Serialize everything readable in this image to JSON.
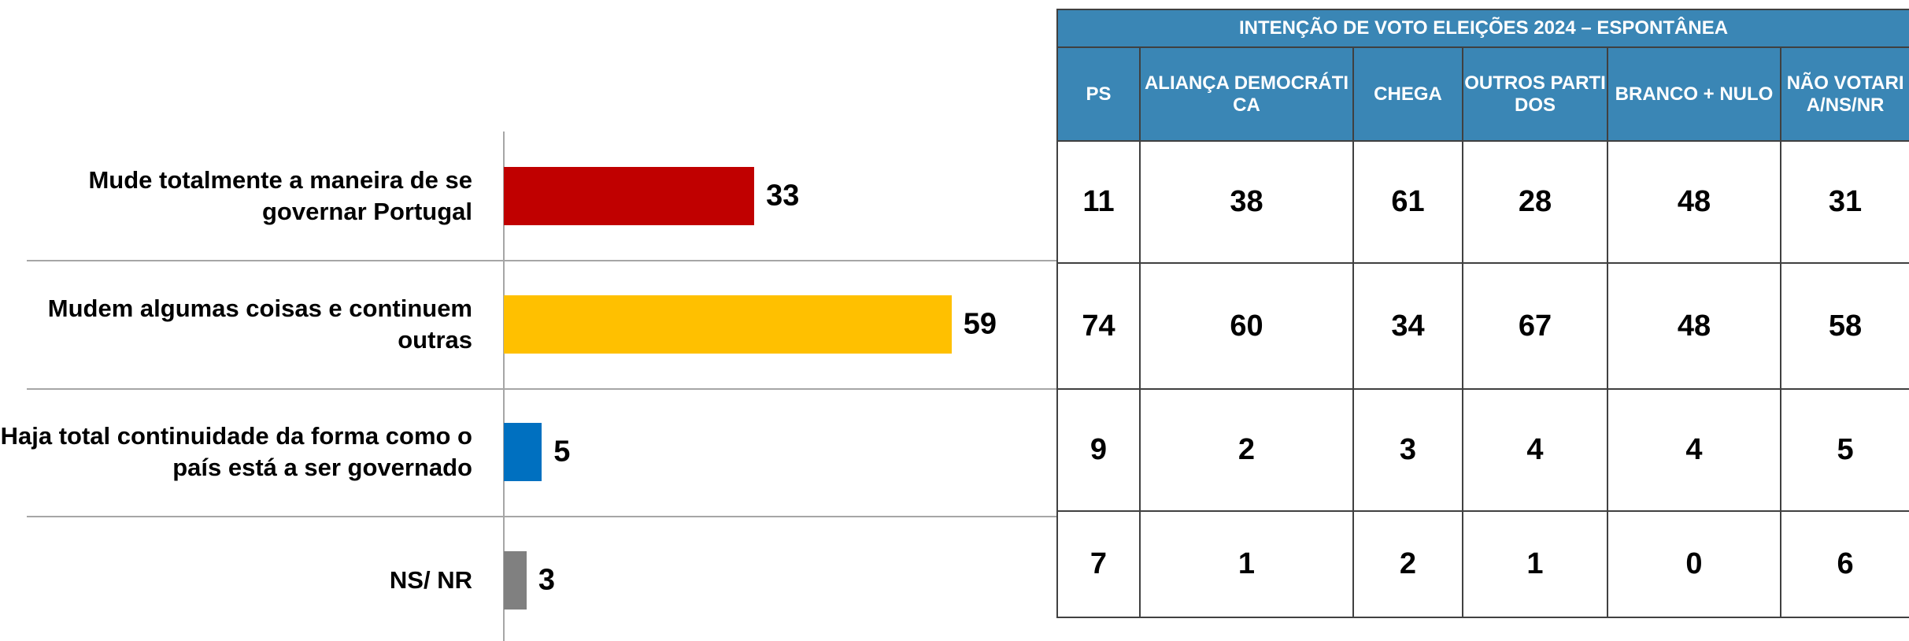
{
  "chart_data": {
    "type": "hbar",
    "categories": [
      "Mude totalmente a maneira de se governar Portugal",
      "Mudem algumas coisas e continuem outras",
      "Haja total continuidade da forma como o país está a ser governado",
      "NS/ NR"
    ],
    "values": [
      33,
      59,
      5,
      3
    ],
    "colors": [
      "#c00000",
      "#ffc000",
      "#0070c0",
      "#808080"
    ]
  },
  "table": {
    "title": "INTENÇÃO DE VOTO ELEIÇÕES 2024 – ESPONTÂNEA",
    "columns": [
      "PS",
      "ALIANÇA DEMOCRÁTICA",
      "CHEGA",
      "OUTROS PARTIDOS",
      "BRANCO + NULO",
      "NÃO VOTARIA/NS/NR"
    ],
    "rows": [
      [
        11,
        38,
        61,
        28,
        48,
        31
      ],
      [
        74,
        60,
        34,
        67,
        48,
        58
      ],
      [
        9,
        2,
        3,
        4,
        4,
        5
      ],
      [
        7,
        1,
        2,
        1,
        0,
        6
      ]
    ]
  }
}
